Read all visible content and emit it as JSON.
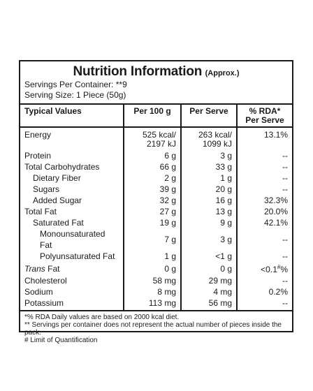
{
  "panel": {
    "title": "Nutrition Information",
    "title_note": "(Approx.)",
    "servings_per_container": "Servings Per Container: **9",
    "serving_size": "Serving Size: 1 Piece (50g)"
  },
  "table": {
    "headers": [
      "Typical Values",
      "Per 100 g",
      "Per Serve",
      "% RDA* Per Serve"
    ],
    "rows": [
      {
        "label": "Energy",
        "per100_line1": "525 kcal/",
        "per100_line2": "2197 kJ",
        "serve_line1": "263 kcal/",
        "serve_line2": "1099 kJ",
        "rda": "13.1%"
      },
      {
        "label": "Protein",
        "per100": "6 g",
        "serve": "3 g",
        "rda": "--"
      },
      {
        "label": "Total Carbohydrates",
        "per100": "66 g",
        "serve": "33 g",
        "rda": "--"
      },
      {
        "label": "Dietary Fiber",
        "per100": "2 g",
        "serve": "1 g",
        "rda": "--"
      },
      {
        "label": "Sugars",
        "per100": "39 g",
        "serve": "20 g",
        "rda": "--"
      },
      {
        "label": "Added Sugar",
        "per100": "32 g",
        "serve": "16 g",
        "rda": "32.3%"
      },
      {
        "label": "Total Fat",
        "per100": "27 g",
        "serve": "13 g",
        "rda": "20.0%"
      },
      {
        "label": "Saturated Fat",
        "per100": "19 g",
        "serve": "9 g",
        "rda": "42.1%"
      },
      {
        "label": "Monounsaturated Fat",
        "per100": "7 g",
        "serve": "3 g",
        "rda": "--"
      },
      {
        "label": "Polyunsaturated Fat",
        "per100": "1 g",
        "serve": "<1 g",
        "rda": "--"
      },
      {
        "label_italic": "Trans",
        "label_rest": " Fat",
        "per100": "0 g",
        "serve": "0 g",
        "rda_main": "<0.1",
        "rda_sup": "#",
        "rda_tail": "%"
      },
      {
        "label": "Cholesterol",
        "per100": "58 mg",
        "serve": "29 mg",
        "rda": "--"
      },
      {
        "label": "Sodium",
        "per100": "8 mg",
        "serve": "4 mg",
        "rda": "0.2%"
      },
      {
        "label": "Potassium",
        "per100": "113 mg",
        "serve": "56 mg",
        "rda": "--"
      }
    ]
  },
  "footnotes": [
    "*% RDA Daily values are based on 2000 kcal diet.",
    "** Servings per container does not represent the actual number of pieces inside the pack.",
    "# Limit of Quantification"
  ]
}
